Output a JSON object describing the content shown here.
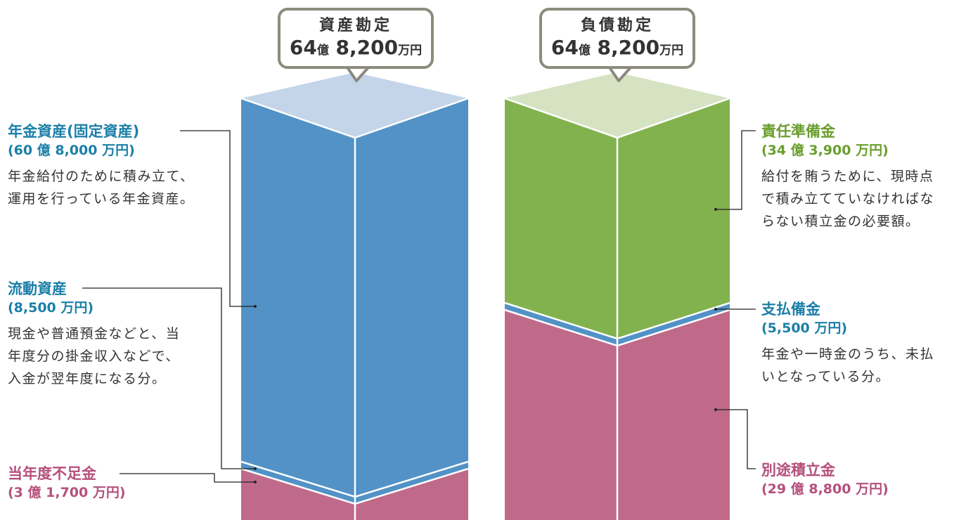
{
  "assets": {
    "heading": "資産勘定",
    "total_num": "64",
    "total_oku": "億",
    "total_rest": " 8,200",
    "total_unit": "万円",
    "items": {
      "pension": {
        "title": "年金資産(固定資産)",
        "amount": "(60 億 8,000 万円)",
        "desc1": "年金給付のために積み立て、",
        "desc2": "運用を行っている年金資産。"
      },
      "current": {
        "title": "流動資産",
        "amount": "(8,500 万円)",
        "desc1": "現金や普通預金などと、当",
        "desc2": "年度分の掛金収入などで、",
        "desc3": "入金が翌年度になる分。"
      },
      "deficit": {
        "title": "当年度不足金",
        "amount": "(3 億 1,700 万円)"
      }
    }
  },
  "liabilities": {
    "heading": "負債勘定",
    "total_num": "64",
    "total_oku": "億",
    "total_rest": " 8,200",
    "total_unit": "万円",
    "items": {
      "reserve": {
        "title": "責任準備金",
        "amount": "(34 億 3,900 万円)",
        "desc1": "給付を賄うために、現時点",
        "desc2": "で積み立てていなければな",
        "desc3": "らない積立金の必要額。"
      },
      "payable": {
        "title": "支払備金",
        "amount": "(5,500 万円)",
        "desc1": "年金や一時金のうち、未払",
        "desc2": "いとなっている分。"
      },
      "special": {
        "title": "別途積立金",
        "amount": "(29 億 8,800 万円)"
      }
    }
  },
  "colors": {
    "asset_blue": "#5292c6",
    "asset_top": "#c4d5ea",
    "deficit_pink": "#c06a8a",
    "reserve_green": "#82b24e",
    "reserve_top": "#d6e3c3",
    "bubble_border": "#8c8b7d"
  }
}
